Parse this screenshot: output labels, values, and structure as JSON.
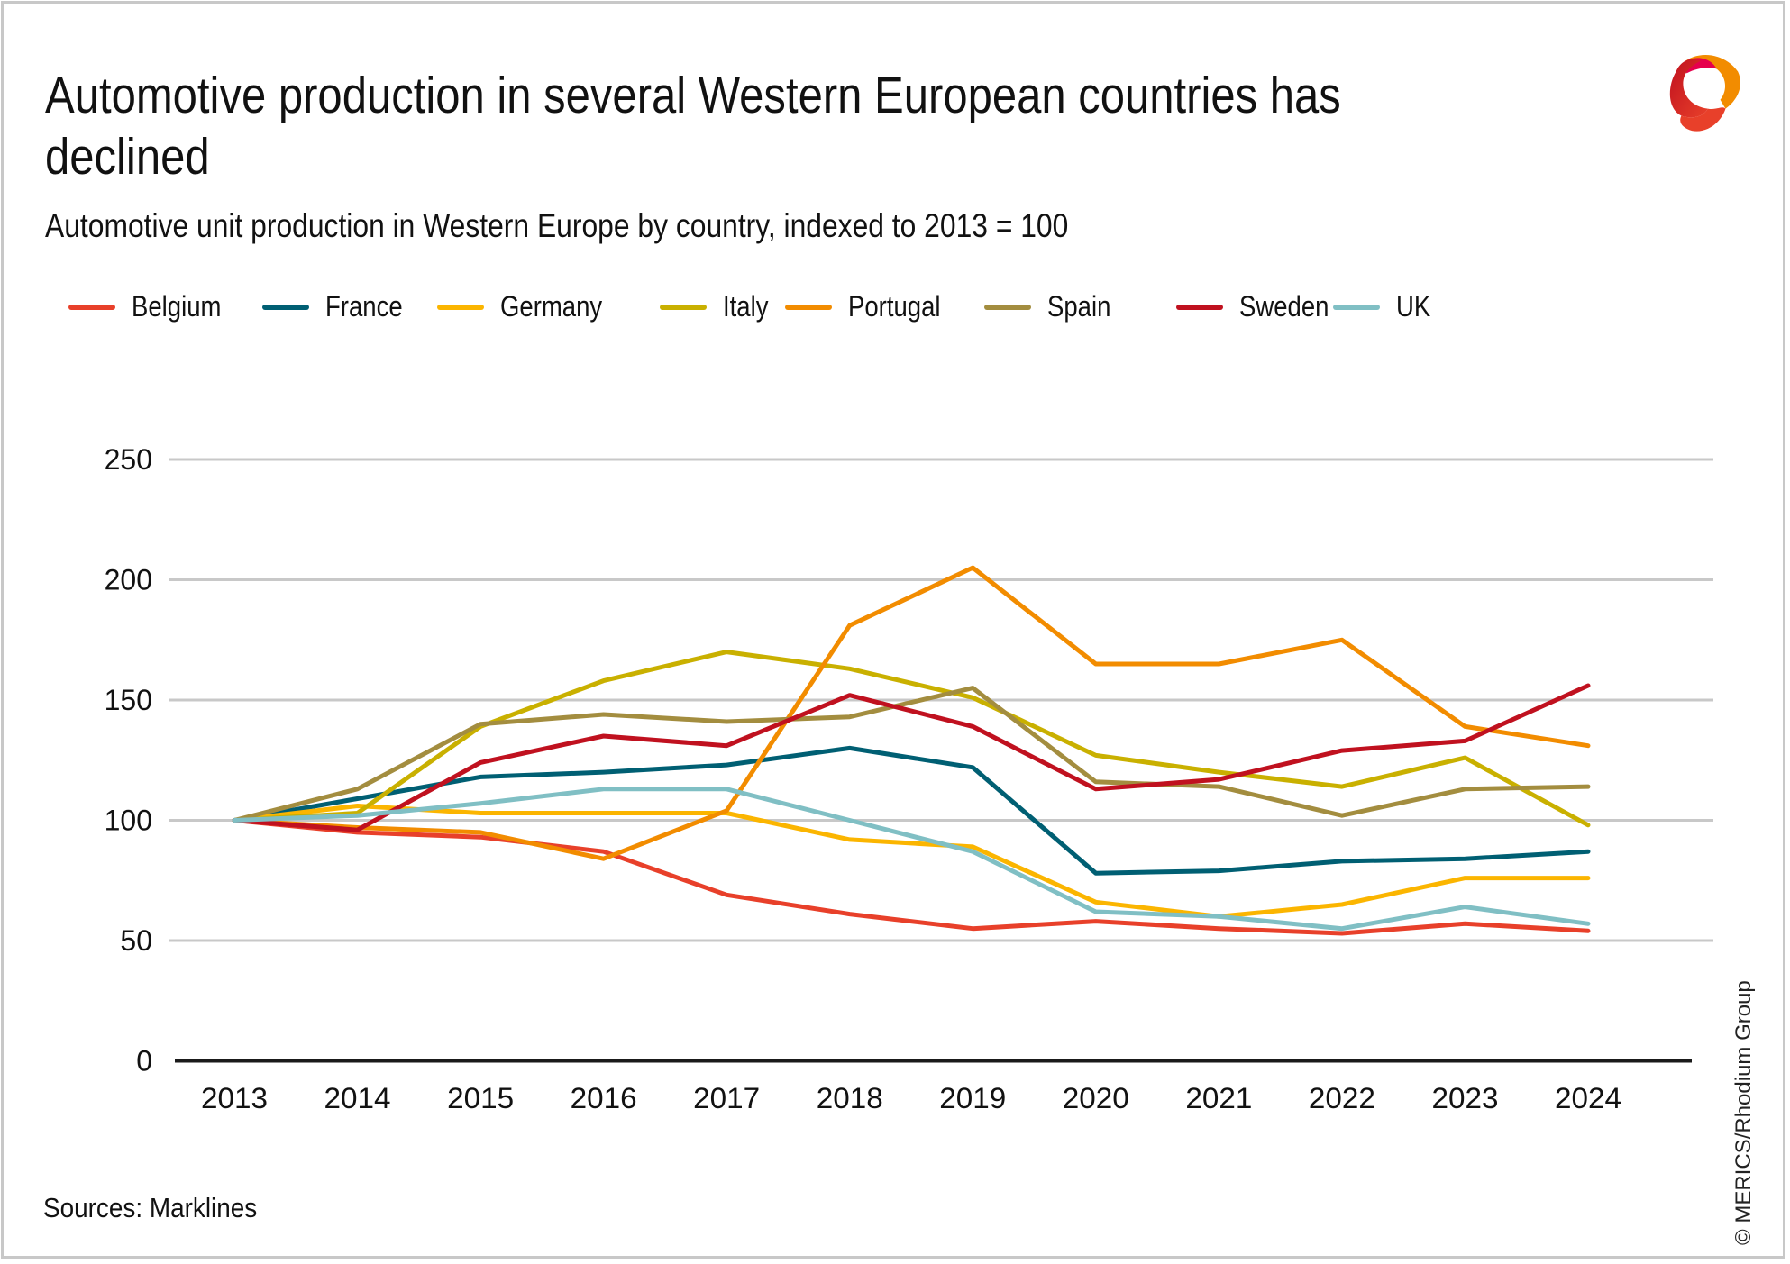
{
  "title_lines": [
    "Automotive production in several Western European countries has",
    "declined"
  ],
  "subtitle": "Automotive unit production in Western Europe by country, indexed to 2013 = 100",
  "logo": {
    "icon": "merics-logo-icon",
    "colors": [
      "#c0111f",
      "#e6004c",
      "#f28c00",
      "#e8402a"
    ]
  },
  "sources": "Sources: Marklines",
  "copyright": "© MERICS/Rhodium Group",
  "chart_data": {
    "type": "line",
    "title": "Automotive production in several Western European countries has declined",
    "subtitle": "Automotive unit production in Western Europe by country, indexed to 2013 = 100",
    "xlabel": "",
    "ylabel": "",
    "x": [
      "2013",
      "2014",
      "2015",
      "2016",
      "2017",
      "2018",
      "2019",
      "2020",
      "2021",
      "2022",
      "2023",
      "2024"
    ],
    "ylim": [
      0,
      250
    ],
    "yticks": [
      "0",
      "50",
      "100",
      "150",
      "200",
      "250"
    ],
    "grid": true,
    "legend_position": "top-left",
    "series": [
      {
        "name": "Belgium",
        "color": "#e8402a",
        "values": [
          100,
          95,
          93,
          87,
          69,
          61,
          55,
          58,
          55,
          53,
          57,
          54
        ]
      },
      {
        "name": "France",
        "color": "#005f73",
        "values": [
          100,
          109,
          118,
          120,
          123,
          130,
          122,
          78,
          79,
          83,
          84,
          87
        ]
      },
      {
        "name": "Germany",
        "color": "#fbb500",
        "values": [
          100,
          106,
          103,
          103,
          103,
          92,
          89,
          66,
          60,
          65,
          76,
          76
        ]
      },
      {
        "name": "Italy",
        "color": "#c9b000",
        "values": [
          100,
          103,
          139,
          158,
          170,
          163,
          151,
          127,
          120,
          114,
          126,
          98
        ]
      },
      {
        "name": "Portugal",
        "color": "#f28c00",
        "values": [
          100,
          97,
          95,
          84,
          104,
          181,
          205,
          165,
          165,
          175,
          139,
          131
        ]
      },
      {
        "name": "Spain",
        "color": "#a38d3f",
        "values": [
          100,
          113,
          140,
          144,
          141,
          143,
          155,
          116,
          114,
          102,
          113,
          114
        ]
      },
      {
        "name": "Sweden",
        "color": "#c0111f",
        "values": [
          100,
          96,
          124,
          135,
          131,
          152,
          139,
          113,
          117,
          129,
          133,
          156
        ]
      },
      {
        "name": "UK",
        "color": "#80bfc4",
        "values": [
          100,
          102,
          107,
          113,
          113,
          100,
          87,
          62,
          60,
          55,
          64,
          57
        ]
      }
    ]
  }
}
